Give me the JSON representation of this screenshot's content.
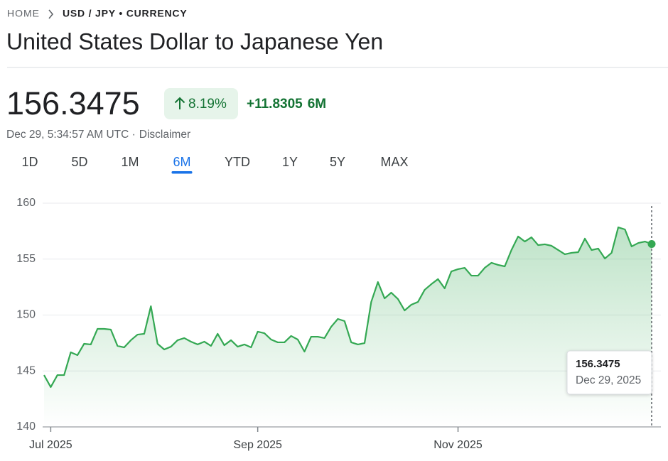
{
  "header": {
    "breadcrumb": [
      "HOME",
      "USD / JPY • CURRENCY"
    ],
    "title": "United States Dollar to Japanese Yen"
  },
  "quote": {
    "price": "156.3475",
    "change_percent": "8.19%",
    "change": "+11.8305",
    "period": "6M",
    "timestamp": "Dec 29, 5:34:57 AM UTC ·",
    "disclaimer": "Disclaimer"
  },
  "tabs": {
    "items": [
      "1D",
      "5D",
      "1M",
      "6M",
      "YTD",
      "1Y",
      "5Y",
      "MAX"
    ],
    "selected": 3
  },
  "chart_data": {
    "type": "line",
    "categories": [
      null,
      "Jul 2025",
      null,
      null,
      null,
      null,
      null,
      null,
      null,
      null,
      null,
      null,
      null,
      null,
      null,
      null,
      null,
      null,
      null,
      null,
      null,
      null,
      null,
      null,
      null,
      null,
      null,
      null,
      null,
      null,
      null,
      null,
      "Sep 2025",
      null,
      null,
      null,
      null,
      null,
      null,
      null,
      null,
      null,
      null,
      null,
      null,
      null,
      null,
      null,
      null,
      null,
      null,
      null,
      null,
      null,
      null,
      null,
      null,
      null,
      null,
      null,
      null,
      null,
      "Nov 2025",
      null,
      null,
      null,
      null,
      null,
      null,
      null,
      null,
      null,
      null,
      null,
      null,
      null,
      null,
      null,
      null,
      null,
      null,
      null,
      null,
      null,
      null,
      null,
      null,
      null,
      null,
      null,
      null,
      null
    ],
    "series": [
      {
        "color": "#34a853",
        "values": [
          144.63,
          143.56,
          144.63,
          144.63,
          146.67,
          146.41,
          147.43,
          147.37,
          148.76,
          148.76,
          148.7,
          147.24,
          147.11,
          147.75,
          148.25,
          148.32,
          150.79,
          147.43,
          146.92,
          147.17,
          147.75,
          147.94,
          147.62,
          147.37,
          147.62,
          147.24,
          148.32,
          147.3,
          147.75,
          147.17,
          147.37,
          147.11,
          148.51,
          148.38,
          147.81,
          147.56,
          147.56,
          148.13,
          147.81,
          146.73,
          148.06,
          148.06,
          147.94,
          148.95,
          149.65,
          149.46,
          147.56,
          147.37,
          147.49,
          151.17,
          152.95,
          151.49,
          152.0,
          151.43,
          150.41,
          150.92,
          151.17,
          152.25,
          152.76,
          153.21,
          152.38,
          153.9,
          154.1,
          154.22,
          153.52,
          153.52,
          154.22,
          154.67,
          154.48,
          154.35,
          155.81,
          157.02,
          156.57,
          156.95,
          156.25,
          156.32,
          156.19,
          155.81,
          155.43,
          155.56,
          155.62,
          156.83,
          155.81,
          155.94,
          155.05,
          155.56,
          157.84,
          157.65,
          156.13,
          156.44,
          156.57,
          156.3475
        ]
      }
    ],
    "ylim": [
      140,
      160
    ],
    "yticks": [
      140,
      145,
      150,
      155,
      160
    ],
    "grid": true,
    "tooltip": {
      "label": "Dec 29, 2025"
    }
  }
}
